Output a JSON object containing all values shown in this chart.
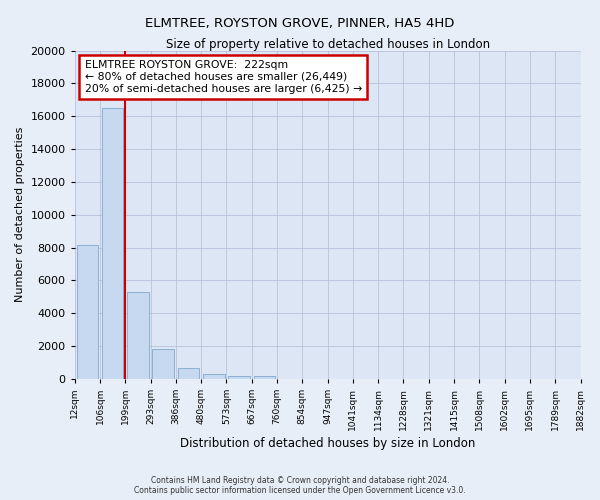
{
  "title": "ELMTREE, ROYSTON GROVE, PINNER, HA5 4HD",
  "subtitle": "Size of property relative to detached houses in London",
  "xlabel": "Distribution of detached houses by size in London",
  "ylabel": "Number of detached properties",
  "bar_values": [
    8150,
    16500,
    5300,
    1800,
    650,
    320,
    175,
    150,
    0,
    0,
    0,
    0,
    0,
    0,
    0,
    0,
    0,
    0,
    0,
    0
  ],
  "bar_labels": [
    "12sqm",
    "106sqm",
    "199sqm",
    "293sqm",
    "386sqm",
    "480sqm",
    "573sqm",
    "667sqm",
    "760sqm",
    "854sqm",
    "947sqm",
    "1041sqm",
    "1134sqm",
    "1228sqm",
    "1321sqm",
    "1415sqm",
    "1508sqm",
    "1602sqm",
    "1695sqm",
    "1789sqm",
    "1882sqm"
  ],
  "bar_color": "#c6d9f0",
  "bar_edge_color": "#8ab0d0",
  "vline_color": "#cc0000",
  "annotation_title": "ELMTREE ROYSTON GROVE:  222sqm",
  "annotation_line1": "← 80% of detached houses are smaller (26,449)",
  "annotation_line2": "20% of semi-detached houses are larger (6,425) →",
  "annotation_box_color": "white",
  "annotation_box_edge": "#cc0000",
  "ylim": [
    0,
    20000
  ],
  "yticks": [
    0,
    2000,
    4000,
    6000,
    8000,
    10000,
    12000,
    14000,
    16000,
    18000,
    20000
  ],
  "footer_line1": "Contains HM Land Registry data © Crown copyright and database right 2024.",
  "footer_line2": "Contains public sector information licensed under the Open Government Licence v3.0.",
  "bg_color": "#e8eef8",
  "plot_bg_color": "#dce6f5"
}
